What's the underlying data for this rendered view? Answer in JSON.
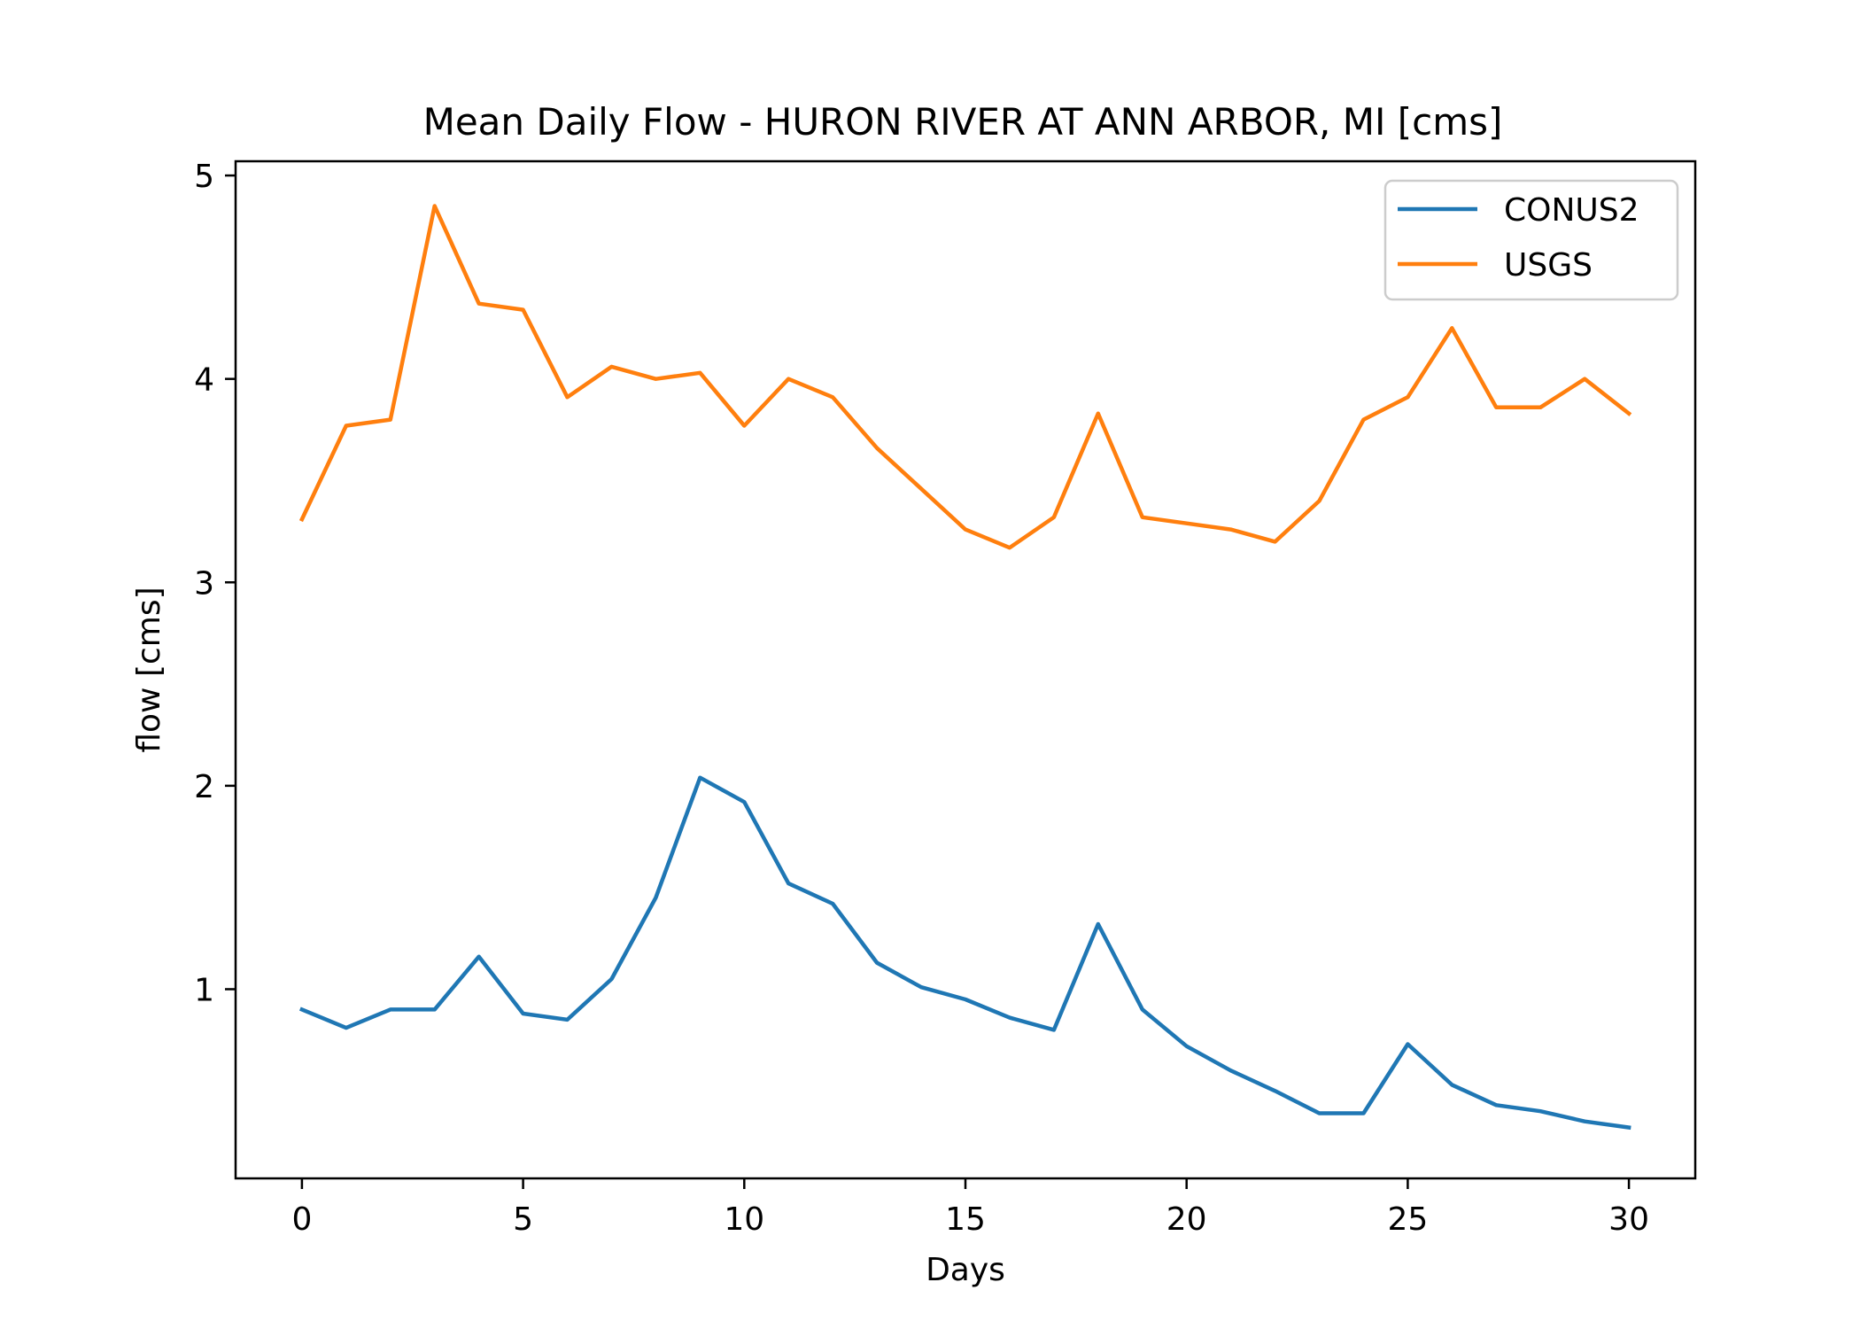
{
  "chart_data": {
    "type": "line",
    "title": "Mean Daily Flow - HURON RIVER AT ANN ARBOR, MI [cms]",
    "xlabel": "Days",
    "ylabel": "flow [cms]",
    "xlim": [
      -1.5,
      31.5
    ],
    "ylim": [
      0.07,
      5.07
    ],
    "xticks": [
      0,
      5,
      10,
      15,
      20,
      25,
      30
    ],
    "yticks": [
      1,
      2,
      3,
      4,
      5
    ],
    "grid": false,
    "legend_position": "top-right",
    "x": [
      0,
      1,
      2,
      3,
      4,
      5,
      6,
      7,
      8,
      9,
      10,
      11,
      12,
      13,
      14,
      15,
      16,
      17,
      18,
      19,
      20,
      21,
      22,
      23,
      24,
      25,
      26,
      27,
      28,
      29,
      30
    ],
    "series": [
      {
        "name": "CONUS2",
        "color": "#1f77b4",
        "values": [
          0.9,
          0.81,
          0.9,
          0.9,
          1.16,
          0.88,
          0.85,
          1.05,
          1.45,
          2.04,
          1.92,
          1.52,
          1.42,
          1.13,
          1.01,
          0.95,
          0.86,
          0.8,
          1.32,
          0.9,
          0.72,
          0.6,
          0.5,
          0.39,
          0.39,
          0.73,
          0.53,
          0.43,
          0.4,
          0.35,
          0.32
        ]
      },
      {
        "name": "USGS",
        "color": "#ff7f0e",
        "values": [
          3.31,
          3.77,
          3.8,
          4.85,
          4.37,
          4.34,
          3.91,
          4.06,
          4.0,
          4.03,
          3.77,
          4.0,
          3.91,
          3.66,
          3.46,
          3.26,
          3.17,
          3.32,
          3.83,
          3.32,
          3.29,
          3.26,
          3.2,
          3.4,
          3.8,
          3.91,
          4.25,
          3.86,
          3.86,
          4.0,
          3.83
        ]
      }
    ]
  }
}
